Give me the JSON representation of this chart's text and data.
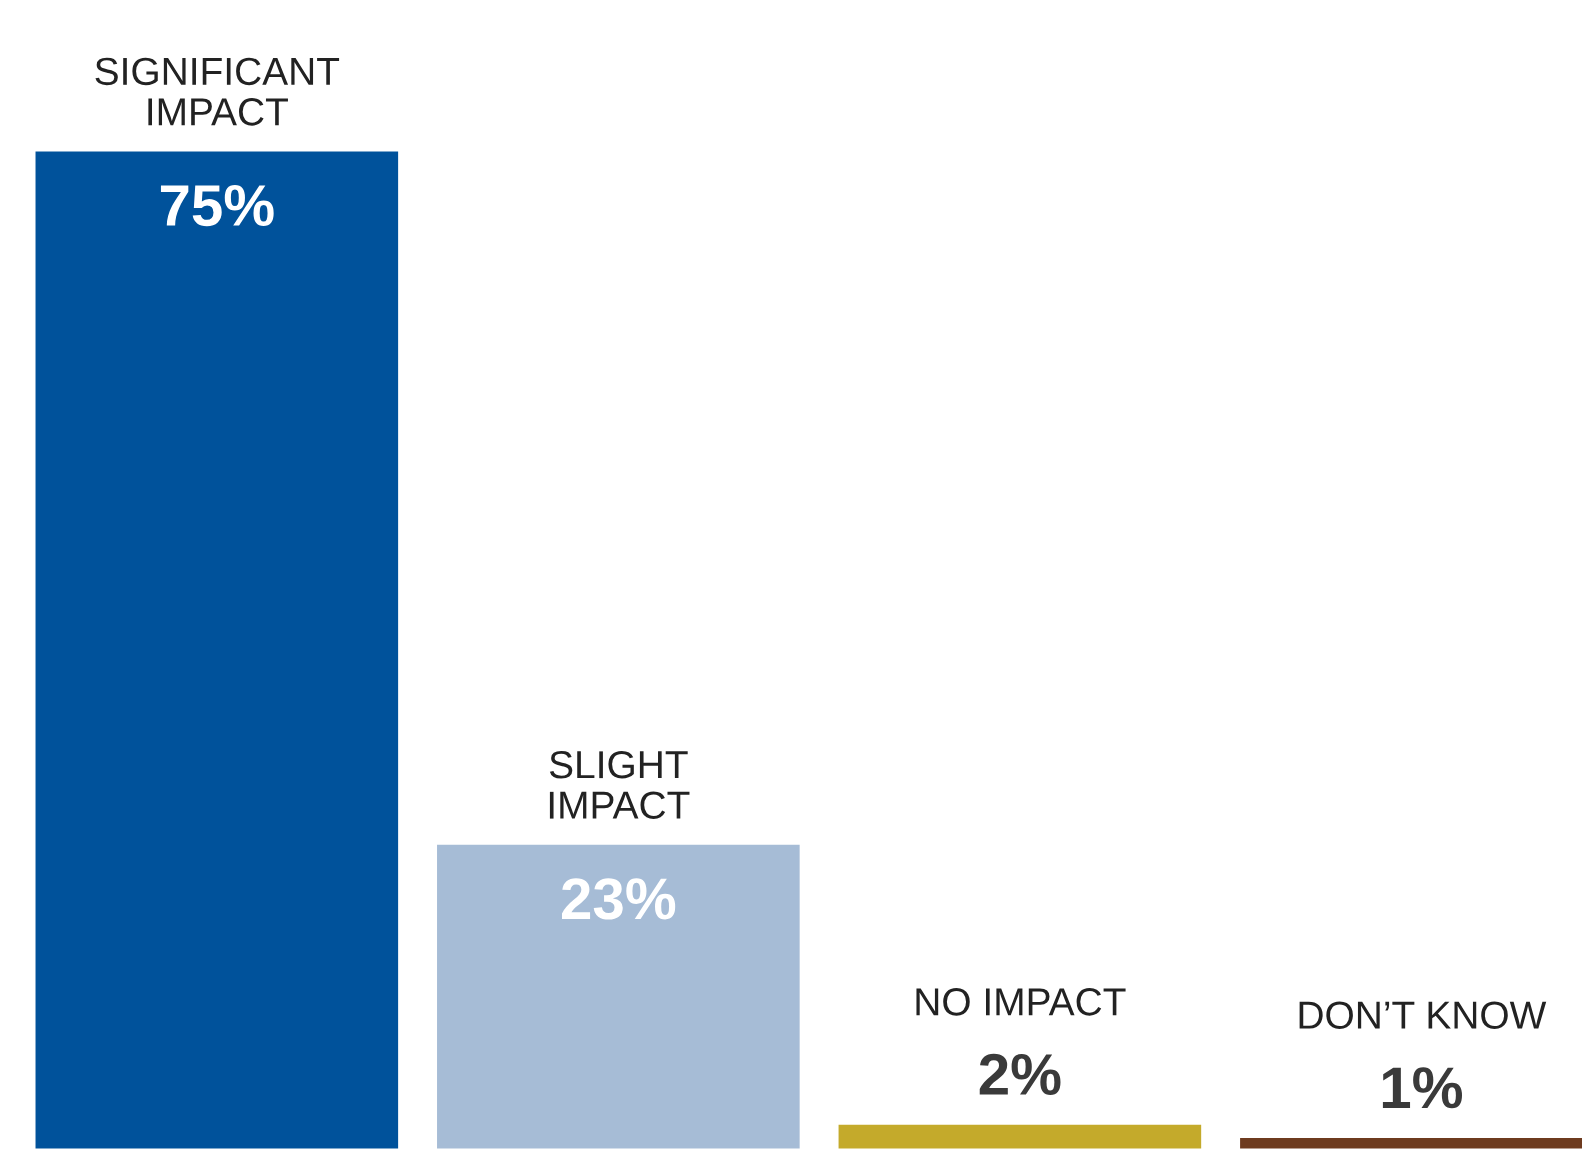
{
  "chart_data": {
    "type": "bar",
    "categories": [
      "SIGNIFICANT\nIMPACT",
      "SLIGHT\nIMPACT",
      "NO IMPACT",
      "DON’T KNOW"
    ],
    "values": [
      75,
      23,
      2,
      1
    ],
    "colors": [
      "#00529b",
      "#a6bcd6",
      "#c4aa2b",
      "#6e3b1f"
    ],
    "value_labels": [
      "75%",
      "23%",
      "2%",
      "1%"
    ]
  }
}
